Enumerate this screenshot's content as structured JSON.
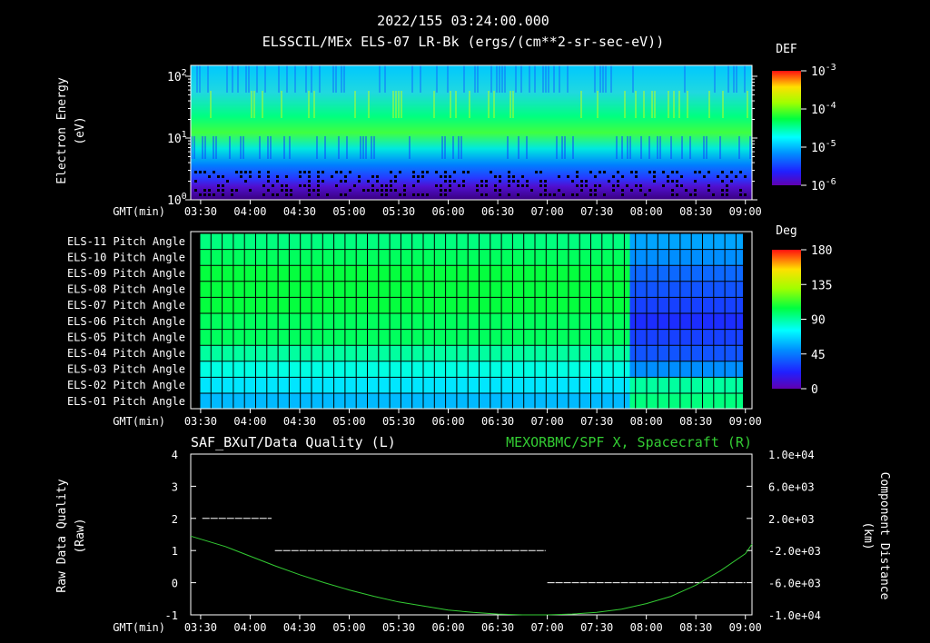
{
  "title": {
    "timestamp": "2022/155 03:24:00.000",
    "subtitle": "ELSSCIL/MEx ELS-07 LR-Bk  (ergs/(cm**2-sr-sec-eV))"
  },
  "gmt_label": "GMT(min)",
  "time_ticks": [
    "03:30",
    "04:00",
    "04:30",
    "05:00",
    "05:30",
    "06:00",
    "06:30",
    "07:00",
    "07:30",
    "08:00",
    "08:30",
    "09:00"
  ],
  "chart_data": [
    {
      "type": "heatmap",
      "name": "electron-energy-spectrogram",
      "title": "ELSSCIL/MEx ELS-07 LR-Bk  (ergs/(cm**2-sr-sec-eV))",
      "ylabel": "Electron Energy (eV)",
      "ylabel_lines": [
        "Electron Energy",
        "(eV)"
      ],
      "xlabel": "GMT(min)",
      "y_scale": "log",
      "ylim": [
        1,
        150
      ],
      "y_ticks": [
        {
          "value": 1,
          "base": "10",
          "exp": "0"
        },
        {
          "value": 10,
          "base": "10",
          "exp": "1"
        },
        {
          "value": 100,
          "base": "10",
          "exp": "2"
        }
      ],
      "xlim": [
        "03:24",
        "09:04"
      ],
      "colorbar": {
        "label": "DEF",
        "ticks": [
          {
            "base": "10",
            "exp": "-3",
            "value": 0.001
          },
          {
            "base": "10",
            "exp": "-4",
            "value": 0.0001
          },
          {
            "base": "10",
            "exp": "-5",
            "value": 1e-05
          },
          {
            "base": "10",
            "exp": "-6",
            "value": 1e-06
          }
        ]
      }
    },
    {
      "type": "heatmap",
      "name": "pitch-angle-panel",
      "xlabel": "GMT(min)",
      "rows": [
        "ELS-11 Pitch Angle",
        "ELS-10 Pitch Angle",
        "ELS-09 Pitch Angle",
        "ELS-08 Pitch Angle",
        "ELS-07 Pitch Angle",
        "ELS-06 Pitch Angle",
        "ELS-05 Pitch Angle",
        "ELS-04 Pitch Angle",
        "ELS-03 Pitch Angle",
        "ELS-02 Pitch Angle",
        "ELS-01 Pitch Angle"
      ],
      "pitch_before_0750_deg": [
        95,
        100,
        105,
        105,
        105,
        100,
        100,
        90,
        80,
        70,
        60
      ],
      "pitch_after_0750_deg": [
        55,
        50,
        40,
        35,
        30,
        25,
        30,
        35,
        50,
        90,
        95
      ],
      "colorbar": {
        "label": "Deg",
        "range": [
          0,
          180
        ],
        "ticks": [
          "180",
          "135",
          "90",
          "45",
          "0"
        ]
      }
    },
    {
      "type": "line",
      "name": "data-quality-and-position",
      "left_title": "SAF_BXuT/Data Quality (L)",
      "right_title": "MEXORBMC/SPF X, Spacecraft (R)",
      "ylabel_left_lines": [
        "Raw Data Quality",
        "(Raw)"
      ],
      "ylabel_right_lines": [
        "Component Distance",
        "(km)"
      ],
      "xlabel": "GMT(min)",
      "ylim_left": [
        -1,
        4
      ],
      "y_ticks_left": [
        "4",
        "3",
        "2",
        "1",
        "0",
        "-1"
      ],
      "ylim_right": [
        -10000,
        10000
      ],
      "y_ticks_right": [
        "1.0e+04",
        "6.0e+03",
        "2.0e+03",
        "-2.0e+03",
        "-6.0e+03",
        "-1.0e+04"
      ],
      "series": [
        {
          "name": "Data Quality",
          "axis": "left",
          "color": "#ffffff",
          "style": "dashed",
          "segments": [
            {
              "start": "03:31",
              "end": "04:13",
              "value": 2
            },
            {
              "start": "04:15",
              "end": "06:59",
              "value": 1
            },
            {
              "start": "07:00",
              "end": "09:00",
              "value": 0
            }
          ]
        },
        {
          "name": "SPF X Spacecraft",
          "axis": "right",
          "color": "#33cc33",
          "x": [
            "03:24",
            "03:45",
            "04:00",
            "04:15",
            "04:30",
            "04:45",
            "05:00",
            "05:15",
            "05:30",
            "05:45",
            "06:00",
            "06:15",
            "06:30",
            "06:45",
            "07:00",
            "07:15",
            "07:30",
            "07:45",
            "08:00",
            "08:15",
            "08:30",
            "08:45",
            "09:00",
            "09:04"
          ],
          "values": [
            -200,
            -1500,
            -2700,
            -3900,
            -5000,
            -6000,
            -6900,
            -7700,
            -8400,
            -8900,
            -9400,
            -9700,
            -9900,
            -10000,
            -10000,
            -9900,
            -9700,
            -9300,
            -8600,
            -7700,
            -6300,
            -4500,
            -2400,
            -1200
          ]
        }
      ]
    }
  ]
}
